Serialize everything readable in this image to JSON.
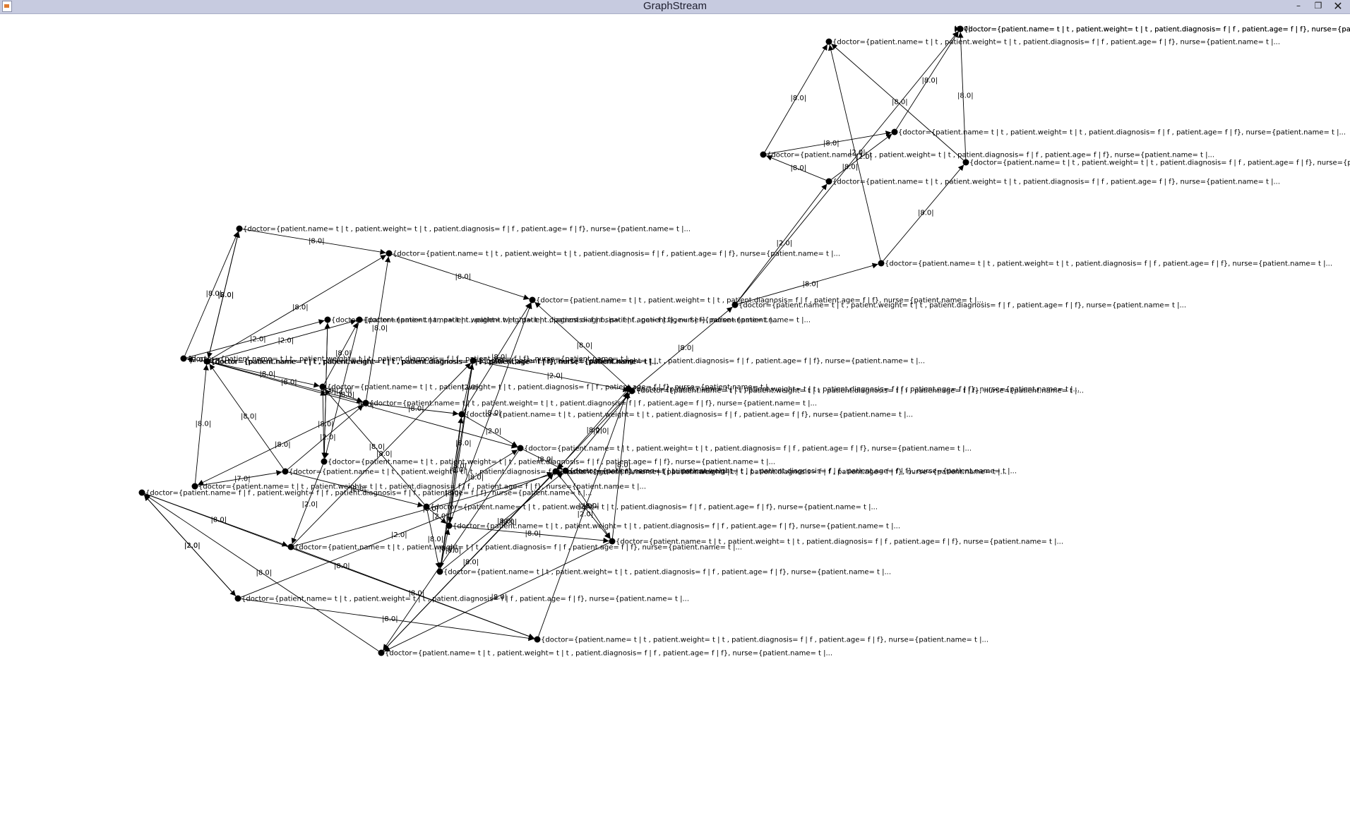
{
  "window": {
    "title": "GraphStream",
    "min_glyph": "–",
    "max_glyph": "❐",
    "close_glyph": "✕"
  },
  "graph": {
    "nodes": [
      {
        "id": "n1",
        "label": "{doctor={patient.name= t | t , patient.weight= t | t , patient.diagnosis= f | f , patient.age= f | f}, nurse={patient.name= t |..."
      },
      {
        "id": "n2",
        "label": "{doctor={patient.name= t | t , patient.weight= t | t , patient.diagnosis= f | f , patient.age= f | f}, nurse={patient.name= t |..."
      },
      {
        "id": "n3",
        "label": "{doctor={patient.name= t | t , patient.weight= t | t , patient.diagnosis= f | f , patient.age= f | f}, nurse={patient.name= t |..."
      },
      {
        "id": "n4",
        "label": "{doctor={patient.name= t | t , patient.weight= t | t , patient.diagnosis= f | f , patient.age= f | f}, nurse={patient.name= t |..."
      },
      {
        "id": "n5",
        "label": "{doctor={patient.name= t | t , patient.weight= t | t , patient.diagnosis= f | f , patient.age= f | f}, nurse={patient.name= t |..."
      },
      {
        "id": "n6",
        "label": "{doctor={patient.name= t | t , patient.weight= t | t , patient.diagnosis= f | f , patient.age= f | f}, nurse={patient.name= t |..."
      },
      {
        "id": "n7",
        "label": "{doctor={patient.name= t | t , patient.weight= t | t , patient.diagnosis= f | f , patient.age= f | f}, nurse={patient.name= t |..."
      },
      {
        "id": "n8",
        "label": "{doctor={patient.name= t | t , patient.weight= t | t , patient.diagnosis= f | f , patient.age= f | f}, nurse={patient.name= t |..."
      },
      {
        "id": "n9",
        "label": "{doctor={patient.name= t | t , patient.weight= t | t , patient.diagnosis= f | f , patient.age= f | f}, nurse={patient.name= t |..."
      },
      {
        "id": "n10",
        "label": "{doctor={patient.name= t | t , patient.weight= t | t , patient.diagnosis= f | f , patient.age= f | f}, nurse={patient.name= t |..."
      },
      {
        "id": "n11",
        "label": "{doctor={patient.name= t | t , patient.weight= t | t , patient.diagnosis= f | f , patient.age= f | f}, nurse={patient.name= t |..."
      },
      {
        "id": "n12",
        "label": "{doctor={patient.name= t | t , patient.weight= t | t , patient.diagnosis= f | f , patient.age= f | f}, nurse={patient.name= t |..."
      },
      {
        "id": "n13",
        "label": "{doctor={patient.name= t | t , patient.weight= t | t , patient.diagnosis= f | f , patient.age= f | f}, nurse={patient.name= t |..."
      },
      {
        "id": "n14",
        "label": "{doctor={patient.name= t | t , patient.weight= t | t , patient.diagnosis= f | f , patient.age= f | f}, nurse={patient.name= t |..."
      },
      {
        "id": "n15",
        "label": "{doctor={patient.name= t | t , patient.weight= t | t , patient.diagnosis= f | f , patient.age= f | f}, nurse={patient.name= t |..."
      },
      {
        "id": "n16",
        "label": "{doctor={patient.name= t | t , patient.weight= t | t , patient.diagnosis= f | f , patient.age= f | f}, nurse={patient.name= t |..."
      },
      {
        "id": "n17",
        "label": "{doctor={patient.name= t | t , patient.weight= t | t , patient.diagnosis= f | f , patient.age= f | f}, nurse={patient.name= t |..."
      },
      {
        "id": "n18",
        "label": "{doctor={patient.name= t | t , patient.weight= t | t , patient.diagnosis= f | f , patient.age= f | f}, nurse={patient.name= t |..."
      },
      {
        "id": "n19",
        "label": "{doctor={patient.name= t | t , patient.weight= t | t , patient.diagnosis= f | f , patient.age= f | f}, nurse={patient.name= t |..."
      },
      {
        "id": "n20",
        "label": "{doctor={patient.name= t | t , patient.weight= t | t , patient.diagnosis= f | f , patient.age= f | f}, nurse={patient.name= t |..."
      },
      {
        "id": "n21",
        "label": "{doctor={patient.name= f | f , patient.weight= f | f , patient.diagnosis= f | f , patient.age= f | f}, nurse={patient.name= t |..."
      },
      {
        "id": "n22",
        "label": "{doctor={patient.name= t | t , patient.weight= t | t , patient.diagnosis= f | f , patient.age= f | f}, nurse={patient.name= t |..."
      },
      {
        "id": "n23",
        "label": "{doctor={patient.name= t | t , patient.weight= t | t , patient.diagnosis= f | f , patient.age= f | f}, nurse={patient.name= t |..."
      },
      {
        "id": "n24",
        "label": "{doctor={patient.name= t | t , patient.weight= t | t , patient.diagnosis= f | f , patient.age= f | f}, nurse={patient.name= t |..."
      },
      {
        "id": "n25",
        "label": "{doctor={patient.name= t | t , patient.weight= t | t , patient.diagnosis= f | f , patient.age= f | f}, nurse={patient.name= t |..."
      },
      {
        "id": "n26",
        "label": "{doctor={patient.name= t | t , patient.weight= t | t , patient.diagnosis= f | f , patient.age= f | f}, nurse={patient.name= t |..."
      },
      {
        "id": "n27",
        "label": "{doctor={patient.name= t | t , patient.weight= t | t , patient.diagnosis= f | f , patient.age= f | f}, nurse={patient.name= t |..."
      },
      {
        "id": "n28",
        "label": "{doctor={patient.name= t | t , patient.weight= t | t , patient.diagnosis= f | f , patient.age= f | f}, nurse={patient.name= t |..."
      },
      {
        "id": "n29",
        "label": "{doctor={patient.name= t | t , patient.weight= t | t , patient.diagnosis= f | f , patient.age= f | f}, nurse={patient.name= t |..."
      },
      {
        "id": "n30",
        "label": "{doctor={patient.name= t | t , patient.weight= t | t , patient.diagnosis= f | f , patient.age= f | f}, nurse={patient.name= t |..."
      },
      {
        "id": "n31",
        "label": "{doctor={patient.name= t | t , patient.weight= t | t , patient.diagnosis= f | f , patient.age= f | f}, nurse={patient.name= t |..."
      },
      {
        "id": "n32",
        "label": "{doctor={patient.name= t | t , patient.weight= t | t , patient.diagnosis= f | f , patient.age= f | f}, nurse={patient.name= t |..."
      },
      {
        "id": "n33",
        "label": "{doctor={patient.name= t | t , patient.weight= t | t , patient.diagnosis= f | f , patient.age= f | f}, nurse={patient.name= t |..."
      },
      {
        "id": "n34",
        "label": "{doctor={patient.name= t | t , patient.weight= t | t , patient.diagnosis= f | f , patient.age= f | f}, nurse={patient.name= t |..."
      },
      {
        "id": "n35",
        "label": "{doctor={patient.name= t | t , patient.weight= t | t , patient.diagnosis= f | f , patient.age= f | f}, nurse={patient.name= t |..."
      },
      {
        "id": "n36",
        "label": "{doctor={patient.name= t | t , patient.weight= t | t , patient.diagnosis= f | f , patient.age= f | f}, nurse={patient.name= t |..."
      },
      {
        "id": "n37",
        "label": "{doctor={patient.name= t | t , patient.weight= t | t , patient.diagnosis= f | f , patient.age= f | f}, nurse={patient.name= t |..."
      },
      {
        "id": "n38",
        "label": "{doctor={patient.name= t | t , patient.weight= t | t , patient.diagnosis= f | f , patient.age= f | f}, nurse={patient.name= t |..."
      }
    ],
    "edges": [
      {
        "from": "n1",
        "to": "n2",
        "label": "|8.0|"
      },
      {
        "from": "n6",
        "to": "n1",
        "label": "|8.0|"
      },
      {
        "from": "n8",
        "to": "n1",
        "label": "|2.0|"
      },
      {
        "from": "n1",
        "to": "n8",
        "label": "|8.0|"
      },
      {
        "from": "n2",
        "to": "n3",
        "label": "|8.0|"
      },
      {
        "from": "n10",
        "to": "n2",
        "label": "|8.0|"
      },
      {
        "from": "n7",
        "to": "n2",
        "label": "|8.0|"
      },
      {
        "from": "n17",
        "to": "n3",
        "label": "|8.0|"
      },
      {
        "from": "n11",
        "to": "n3",
        "label": "|8.0|"
      },
      {
        "from": "n19",
        "to": "n3",
        "label": "|8.0|"
      },
      {
        "from": "n6",
        "to": "n4",
        "label": "|2.0|"
      },
      {
        "from": "n8",
        "to": "n5",
        "label": "|2.0|"
      },
      {
        "from": "n9",
        "to": "n5",
        "label": "|8.0|"
      },
      {
        "from": "n8",
        "to": "n9",
        "label": "|8.0|"
      },
      {
        "from": "n8",
        "to": "n10",
        "label": "|8.0|"
      },
      {
        "from": "n10",
        "to": "n11",
        "label": "|8.0|"
      },
      {
        "from": "n9",
        "to": "n10",
        "label": "|8.0|"
      },
      {
        "from": "n11",
        "to": "n18",
        "label": "|2.0|"
      },
      {
        "from": "n11",
        "to": "n12",
        "label": "|2.0|"
      },
      {
        "from": "n12",
        "to": "n13",
        "label": "|8.0|"
      },
      {
        "from": "n15",
        "to": "n10",
        "label": "|2.0|"
      },
      {
        "from": "n14",
        "to": "n9",
        "label": "|8.0|"
      },
      {
        "from": "n16",
        "to": "n9",
        "label": "|8.0|"
      },
      {
        "from": "n7",
        "to": "n12",
        "label": "|8.0|"
      },
      {
        "from": "n7",
        "to": "n6",
        "label": "|2.0|"
      },
      {
        "from": "n20",
        "to": "n7",
        "label": "|8.0|"
      },
      {
        "from": "n20",
        "to": "n15",
        "label": "|7.0|"
      },
      {
        "from": "n15",
        "to": "n16",
        "label": "|2.0|"
      },
      {
        "from": "n16",
        "to": "n12",
        "label": "|8.0|"
      },
      {
        "from": "n15",
        "to": "n8",
        "label": "|8.0|"
      },
      {
        "from": "n14",
        "to": "n4",
        "label": "|8.0|"
      },
      {
        "from": "n14",
        "to": "n22",
        "label": "|2.0|"
      },
      {
        "from": "n22",
        "to": "n18",
        "label": "|8.0|"
      },
      {
        "from": "n18",
        "to": "n24",
        "label": "|8.0|"
      },
      {
        "from": "n18",
        "to": "n17",
        "label": "|8.0|"
      },
      {
        "from": "n13",
        "to": "n25",
        "label": "|8.0|"
      },
      {
        "from": "n13",
        "to": "n19",
        "label": "|2.0|"
      },
      {
        "from": "n19",
        "to": "n26",
        "label": "|8.0|"
      },
      {
        "from": "n25",
        "to": "n26",
        "label": "|8.0|"
      },
      {
        "from": "n25",
        "to": "n28",
        "label": "|8.0|"
      },
      {
        "from": "n26",
        "to": "n29",
        "label": "|8.0|"
      },
      {
        "from": "n28",
        "to": "n29",
        "label": "|8.0|"
      },
      {
        "from": "n29",
        "to": "n25",
        "label": "|2.0|"
      },
      {
        "from": "n21",
        "to": "n22",
        "label": "|8.0|"
      },
      {
        "from": "n21",
        "to": "n23",
        "label": "|2.0|"
      },
      {
        "from": "n23",
        "to": "n27",
        "label": "|8.0|"
      },
      {
        "from": "n22",
        "to": "n27",
        "label": "|8.0|"
      },
      {
        "from": "n27",
        "to": "n28",
        "label": "|2.0|"
      },
      {
        "from": "n23",
        "to": "n29",
        "label": "|2.0|"
      },
      {
        "from": "n24",
        "to": "n17",
        "label": "|8.0|"
      },
      {
        "from": "n24",
        "to": "n13",
        "label": "|8.0|"
      },
      {
        "from": "n17",
        "to": "n11",
        "label": "|8.0|"
      },
      {
        "from": "n12",
        "to": "n26",
        "label": "|8.0|"
      },
      {
        "from": "n16",
        "to": "n24",
        "label": "|8.0|"
      },
      {
        "from": "n17",
        "to": "n25",
        "label": "|8.0|"
      },
      {
        "from": "n19",
        "to": "n30",
        "label": "|8.0|"
      },
      {
        "from": "n30",
        "to": "n31",
        "label": "|8.0|"
      },
      {
        "from": "n30",
        "to": "n32",
        "label": "|2.0|"
      },
      {
        "from": "n30",
        "to": "n37",
        "label": "|8.0|"
      },
      {
        "from": "n31",
        "to": "n33",
        "label": "|8.0|"
      },
      {
        "from": "n31",
        "to": "n36",
        "label": "|2.0|"
      },
      {
        "from": "n32",
        "to": "n34",
        "label": "|2.0|"
      },
      {
        "from": "n32",
        "to": "n35",
        "label": "|8.0|"
      },
      {
        "from": "n33",
        "to": "n36",
        "label": "|8.0|"
      },
      {
        "from": "n33",
        "to": "n38",
        "label": "|8.0|"
      },
      {
        "from": "n34",
        "to": "n38",
        "label": "|8.0|"
      },
      {
        "from": "n35",
        "to": "n34",
        "label": "|8.0|"
      },
      {
        "from": "n35",
        "to": "n36",
        "label": "|8.0|"
      },
      {
        "from": "n37",
        "to": "n38",
        "label": "|2.0|"
      },
      {
        "from": "n18",
        "to": "n19",
        "label": "|2.0|"
      },
      {
        "from": "n26",
        "to": "n21",
        "label": "|8.0|"
      },
      {
        "from": "n23",
        "to": "n21",
        "label": "|2.0|"
      },
      {
        "from": "n4",
        "to": "n14",
        "label": "|8.0|"
      },
      {
        "from": "n5",
        "to": "n14",
        "label": "|2.0|"
      },
      {
        "from": "n16",
        "to": "n17",
        "label": "|2.0|"
      },
      {
        "from": "n22",
        "to": "n13",
        "label": "|8.0|"
      },
      {
        "from": "n24",
        "to": "n11",
        "label": "|8.0|"
      },
      {
        "from": "n21",
        "to": "n27",
        "label": "|8.0|"
      },
      {
        "from": "n10",
        "to": "n20",
        "label": "|8.0|"
      }
    ]
  }
}
